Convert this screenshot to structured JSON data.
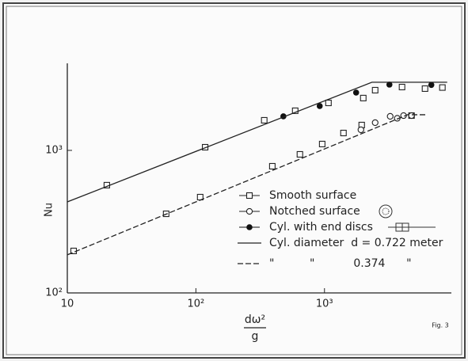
{
  "chart_data": {
    "type": "scatter",
    "y_label": "Nu",
    "x_label": {
      "numerator": "dω²",
      "denominator": "g"
    },
    "figure_label": "Fig. 3",
    "log_x": true,
    "log_y": true,
    "xlim": [
      10,
      9700
    ],
    "ylim": [
      100,
      4080
    ],
    "xticks": [
      10,
      {
        "value": 100,
        "label": "10²"
      },
      {
        "value": 1000,
        "label": "10³"
      }
    ],
    "yticks": [
      {
        "value": 100,
        "label": "10²"
      },
      {
        "value": 1000,
        "label": "10³"
      }
    ],
    "series": [
      {
        "name": "Smooth surface",
        "marker": "square",
        "color": "#222222",
        "x": [
          11.2,
          20.3,
          58.7,
          108,
          118,
          340,
          393,
          592,
          644,
          960,
          1074,
          1405,
          1947,
          2003,
          2478,
          4009,
          4753,
          6050,
          8260
        ],
        "values": [
          197,
          570,
          359,
          470,
          1052,
          1626,
          774,
          1897,
          938,
          1108,
          2153,
          1324,
          1506,
          2328,
          2644,
          2782,
          1754,
          2712,
          2760
        ]
      },
      {
        "name": "Notched surface",
        "marker": "circle",
        "color": "#222222",
        "x": [
          1920,
          2478,
          3243,
          3681,
          4122,
          4753
        ],
        "values": [
          1395,
          1565,
          1733,
          1680,
          1754,
          1754
        ]
      },
      {
        "name": "Cyl. with end discs",
        "marker": "filled-circle",
        "color": "#111111",
        "x": [
          479,
          918,
          1762,
          3199,
          6776
        ],
        "values": [
          1733,
          2048,
          2545,
          2893,
          2878
        ]
      },
      {
        "name": "Cyl. diameter  d = 0.722 meter",
        "line": "solid",
        "color": "#222222",
        "x": [
          10,
          2339,
          9000
        ],
        "values": [
          435,
          3006,
          3006
        ]
      },
      {
        "name": "\"          \"           0.374      \"",
        "line": "dashed",
        "color": "#222222",
        "x": [
          10,
          4426,
          6310
        ],
        "values": [
          185,
          1778,
          1778
        ]
      }
    ]
  }
}
